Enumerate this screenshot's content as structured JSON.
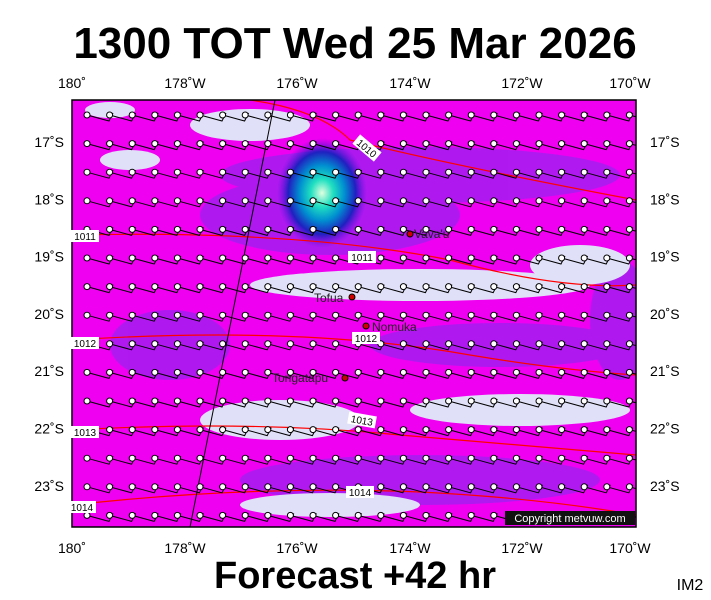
{
  "title": "1300 TOT Wed 25 Mar 2026",
  "footer": "Forecast +42 hr",
  "image_code": "IM2",
  "copyright": "Copyright metvuw.com",
  "longitude_labels": [
    "180˚",
    "178˚W",
    "176˚W",
    "174˚W",
    "172˚W",
    "170˚W"
  ],
  "latitude_labels": [
    "17˚S",
    "18˚S",
    "19˚S",
    "20˚S",
    "21˚S",
    "22˚S",
    "23˚S"
  ],
  "places": [
    {
      "label": "Vava'u"
    },
    {
      "label": "Tofua"
    },
    {
      "label": "Nomuka"
    },
    {
      "label": "Tongatapu"
    }
  ],
  "isobar_labels": [
    "1010",
    "1011",
    "1011",
    "1012",
    "1012",
    "1013",
    "1013",
    "1014",
    "1014"
  ]
}
